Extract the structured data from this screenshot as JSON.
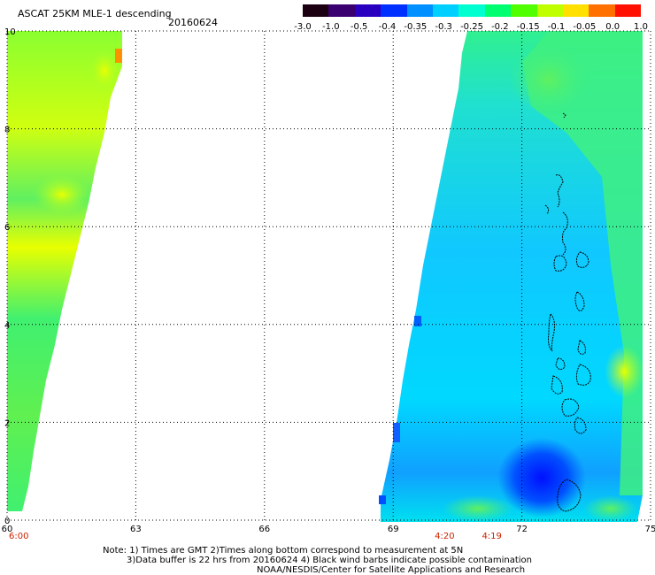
{
  "header": {
    "title": "ASCAT 25KM MLE-1 descending",
    "date": "20160624"
  },
  "colorbar": {
    "labels": [
      "-3.0",
      "-1.0",
      "-0.5",
      "-0.4",
      "-0.35",
      "-0.3",
      "-0.25",
      "-0.2",
      "-0.15",
      "-0.1",
      "-0.05",
      "0.0",
      "1.0"
    ],
    "colors": [
      "#1a0010",
      "#3a0070",
      "#2a00c0",
      "#0030ff",
      "#0090ff",
      "#00d0ff",
      "#00ffd0",
      "#00ff70",
      "#50ff00",
      "#c0ff00",
      "#ffe000",
      "#ff7000",
      "#ff1000"
    ]
  },
  "map": {
    "x_ticks": [
      "60",
      "63",
      "66",
      "69",
      "72",
      "75"
    ],
    "y_ticks": [
      "0",
      "2",
      "4",
      "6",
      "8",
      "10"
    ],
    "x_range": [
      60,
      75
    ],
    "y_range": [
      0,
      10
    ],
    "time_labels": [
      {
        "text": "6:00",
        "lon": 60
      },
      {
        "text": "4:20",
        "lon": 70.2
      },
      {
        "text": "4:19",
        "lon": 71.3
      }
    ],
    "colors": {
      "low": "#0018ff",
      "mid_blue": "#1aa0ff",
      "cyan": "#00eaff",
      "green": "#40f080",
      "lime": "#b0ff20",
      "yellow": "#f0ff00",
      "orange": "#ff8a00"
    }
  },
  "notes": {
    "line1": "Note: 1) Times are GMT 2)Times along bottom correspond to measurement at 5N",
    "line2": "3)Data buffer is 22 hrs from 20160624 4) Black wind barbs indicate possible contamination",
    "line3": "NOAA/NESDIS/Center for Satellite Applications and Research"
  }
}
